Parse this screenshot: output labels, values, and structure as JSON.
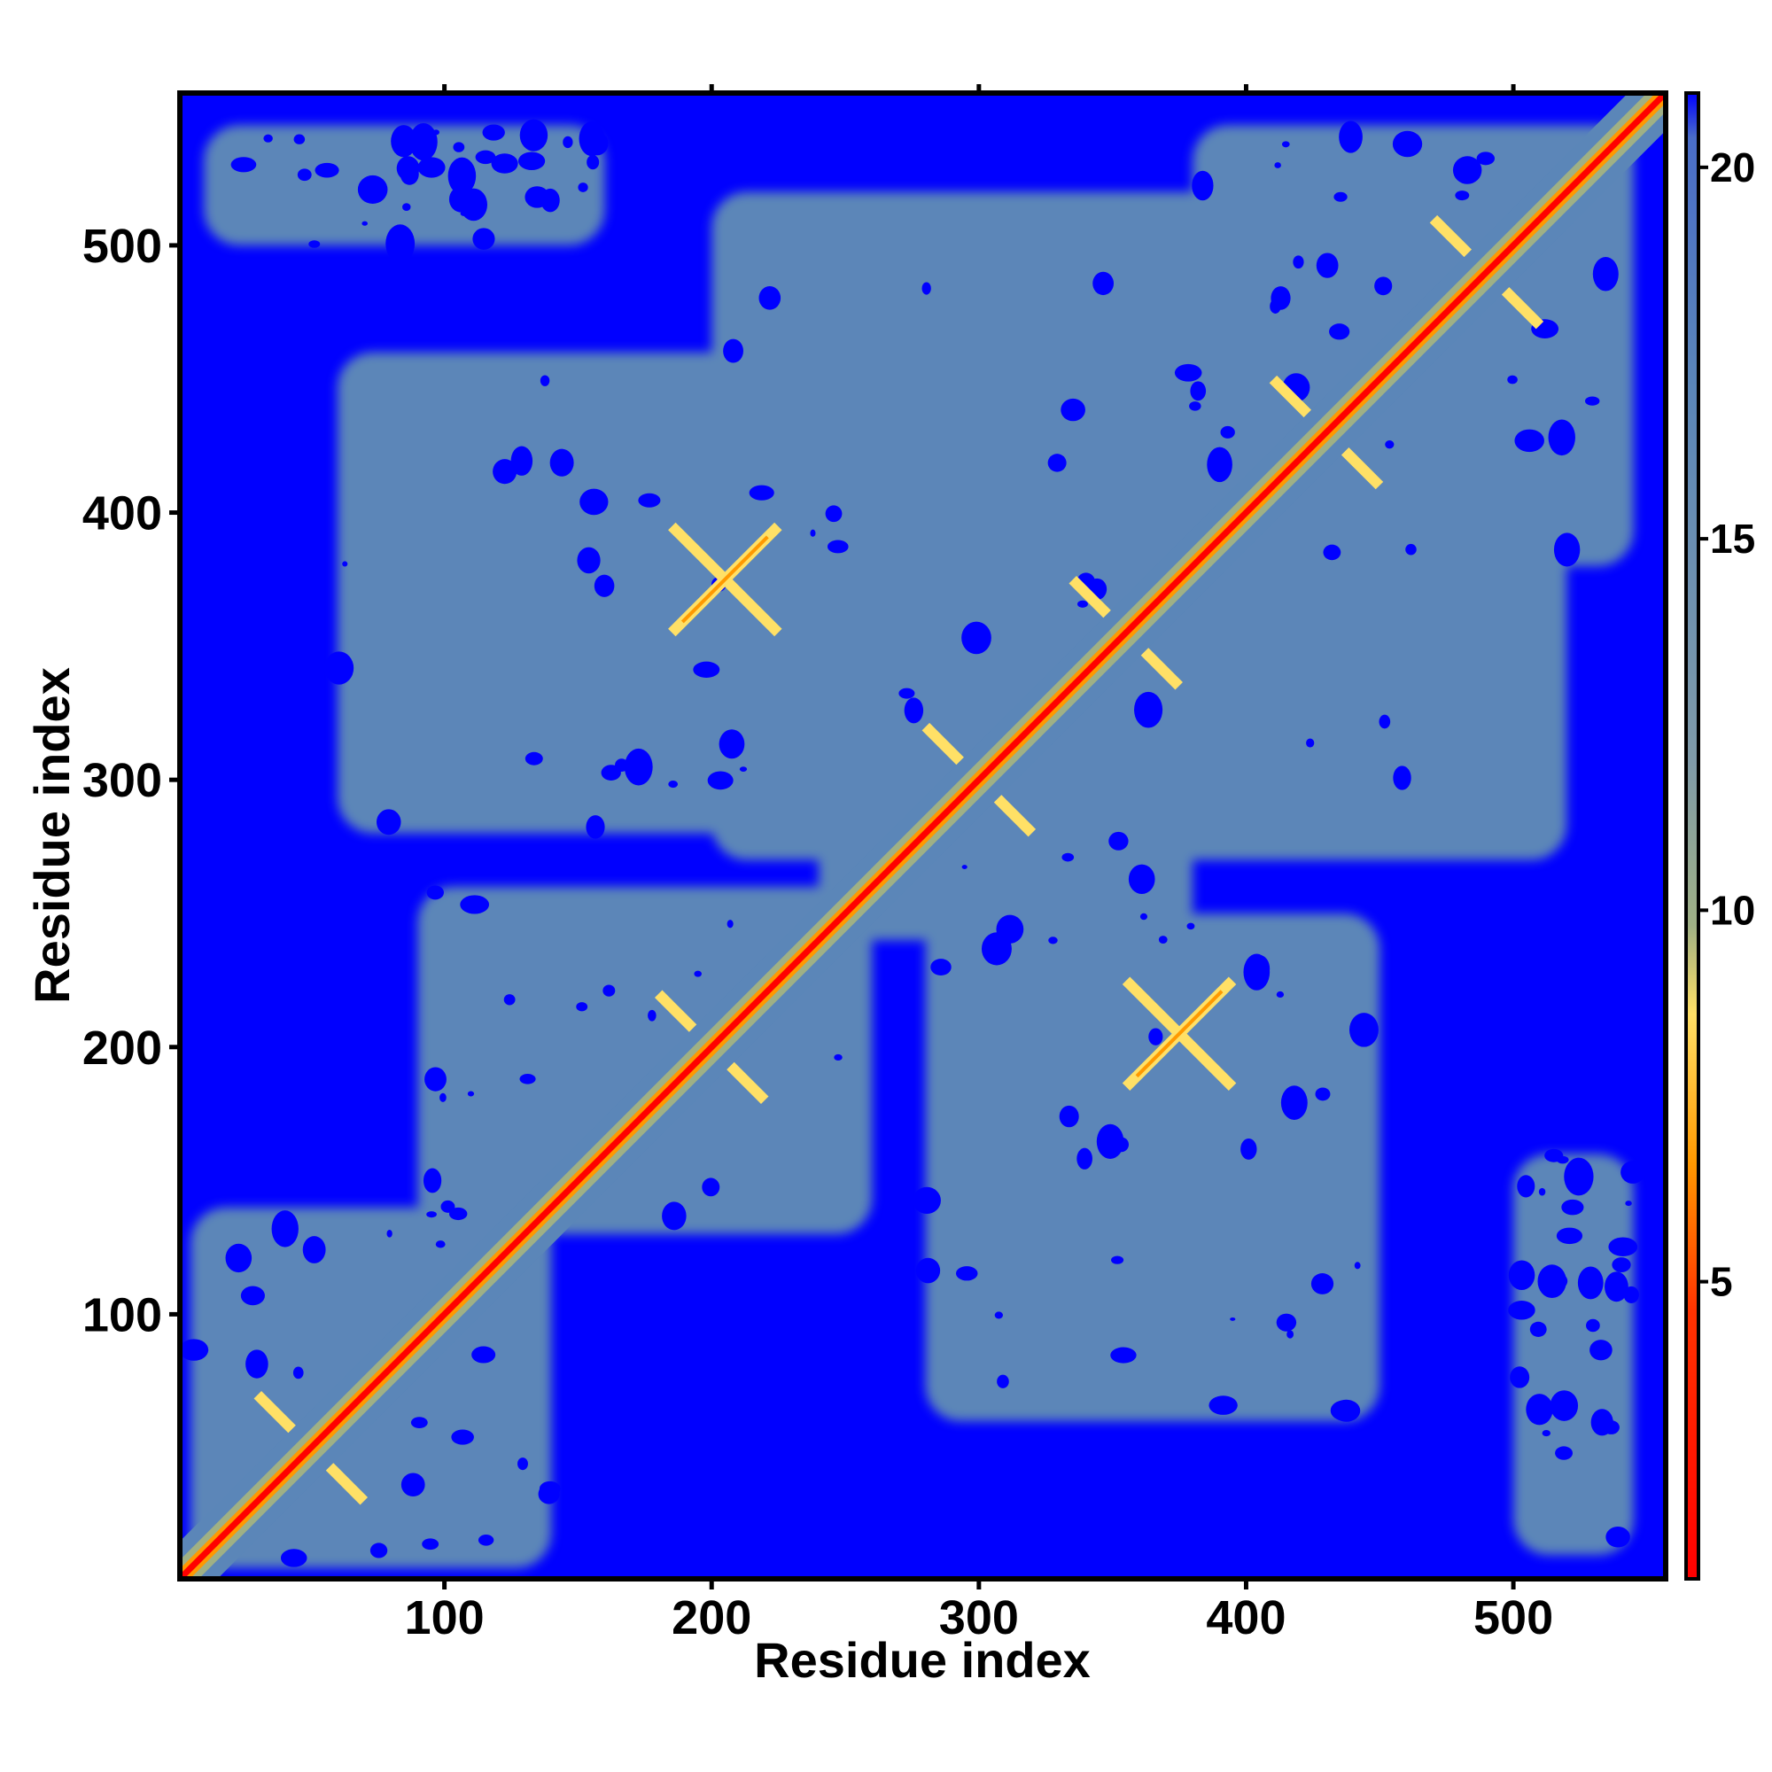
{
  "chart_data": {
    "type": "heatmap",
    "title": "",
    "xlabel": "Residue index",
    "ylabel": "Residue index",
    "xlim": [
      1,
      557
    ],
    "ylim": [
      1,
      557
    ],
    "x_ticks": [
      100,
      200,
      300,
      400,
      500
    ],
    "x_tick_labels": [
      "100",
      "200",
      "300",
      "400",
      "500"
    ],
    "y_ticks": [
      100,
      200,
      300,
      400,
      500
    ],
    "y_tick_labels": [
      "100",
      "200",
      "300",
      "400",
      "500"
    ],
    "colorbar": {
      "range": [
        1,
        21
      ],
      "ticks": [
        5,
        10,
        15,
        20
      ],
      "tick_labels": [
        "5",
        "10",
        "15",
        "20"
      ],
      "colors": {
        "close": "#ff0000",
        "mid": "#ff9900",
        "near": "#ffe066",
        "contact_edge": "#9fb085",
        "medium": "#5b86b8",
        "far": "#0000ff"
      }
    },
    "contact_features": {
      "diagonal": true,
      "blocks": [
        {
          "x": [
            5,
            140
          ],
          "y": [
            5,
            140
          ]
        },
        {
          "x": [
            90,
            260
          ],
          "y": [
            130,
            260
          ]
        },
        {
          "x": [
            240,
            380
          ],
          "y": [
            240,
            380
          ]
        },
        {
          "x": [
            380,
            545
          ],
          "y": [
            380,
            545
          ]
        },
        {
          "x": [
            60,
            250
          ],
          "y": [
            280,
            460
          ]
        },
        {
          "x": [
            280,
            450
          ],
          "y": [
            60,
            250
          ]
        },
        {
          "x": [
            10,
            160
          ],
          "y": [
            500,
            545
          ]
        },
        {
          "x": [
            500,
            545
          ],
          "y": [
            10,
            160
          ]
        },
        {
          "x": [
            200,
            520
          ],
          "y": [
            270,
            520
          ]
        }
      ],
      "cross_patterns": [
        {
          "x": 205,
          "y": 375
        },
        {
          "x": 375,
          "y": 205
        },
        {
          "x": 355,
          "y": 355
        },
        {
          "x": 200,
          "y": 200
        },
        {
          "x": 50,
          "y": 50
        },
        {
          "x": 490,
          "y": 490
        },
        {
          "x": 430,
          "y": 430
        },
        {
          "x": 300,
          "y": 300
        }
      ]
    }
  }
}
